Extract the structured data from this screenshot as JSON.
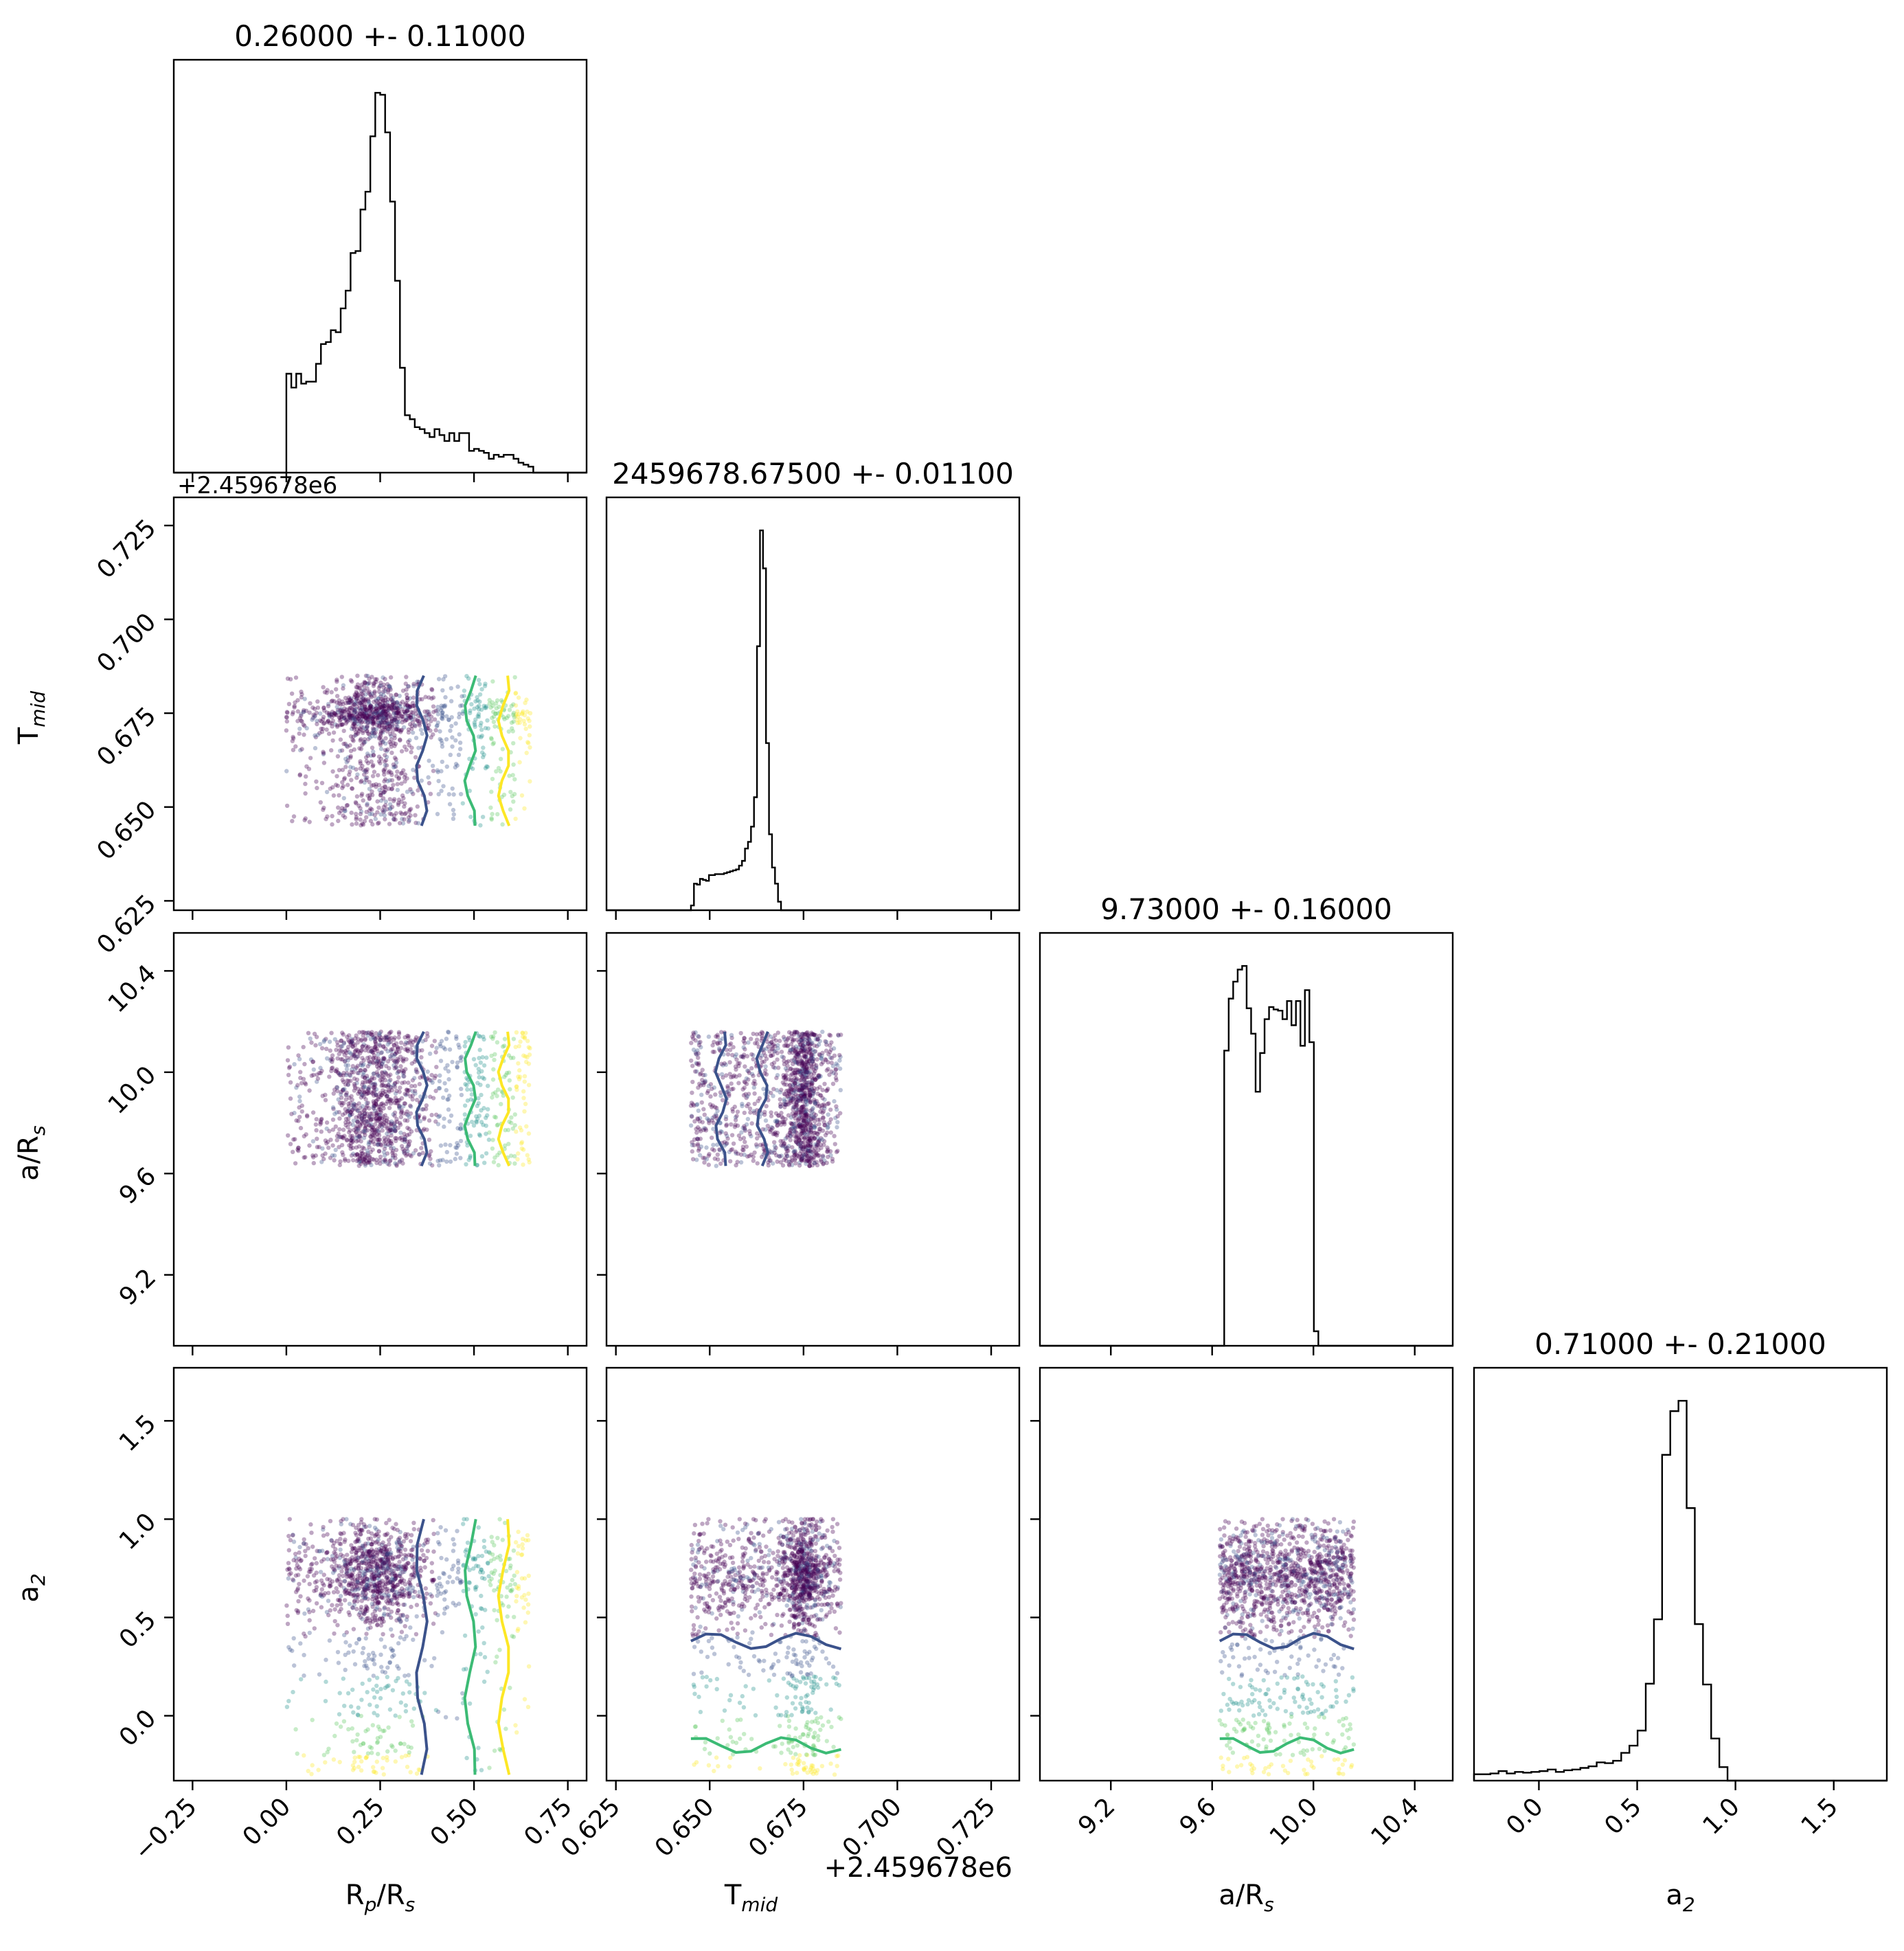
{
  "colors": {
    "frame": "#000000",
    "hist": "#000000",
    "scatter_scale": [
      "#440154",
      "#3b528b",
      "#21918c",
      "#5ec962",
      "#fde725"
    ],
    "contour_levels": [
      "#3b528b",
      "#3cbb75",
      "#fde725"
    ]
  },
  "chart_data": {
    "type": "corner",
    "params": [
      {
        "key": "rp",
        "label": "R",
        "sub": "p",
        "label_rest": "/R",
        "sub2": "s",
        "range": [
          -0.3,
          0.8
        ],
        "ticks": [
          "−0.25",
          "0.00",
          "0.25",
          "0.50",
          "0.75"
        ],
        "tick_values": [
          -0.25,
          0.0,
          0.25,
          0.5,
          0.75
        ],
        "sample_range": [
          0.0,
          0.65
        ]
      },
      {
        "key": "tmid",
        "label": "T",
        "sub": "mid",
        "label_rest": "",
        "sub2": "",
        "range": [
          0.6225,
          0.7325
        ],
        "ticks": [
          "0.625",
          "0.650",
          "0.675",
          "0.700",
          "0.725"
        ],
        "tick_values": [
          0.625,
          0.65,
          0.675,
          0.7,
          0.725
        ],
        "offset": "+2.459678e6",
        "sample_range": [
          0.645,
          0.685
        ]
      },
      {
        "key": "ars",
        "label": "a/R",
        "sub": "s",
        "label_rest": "",
        "sub2": "",
        "range": [
          8.92,
          10.55
        ],
        "ticks": [
          "9.2",
          "9.6",
          "10.0",
          "10.4"
        ],
        "tick_values": [
          9.2,
          9.6,
          10.0,
          10.4
        ],
        "sample_range": [
          9.63,
          10.16
        ]
      },
      {
        "key": "a2",
        "label": "a",
        "sub": "2",
        "label_rest": "",
        "sub2": "",
        "range": [
          -0.33,
          1.77
        ],
        "ticks": [
          "0.0",
          "0.5",
          "1.0",
          "1.5"
        ],
        "tick_values": [
          0.0,
          0.5,
          1.0,
          1.5
        ],
        "sample_range": [
          -0.3,
          1.0
        ]
      }
    ],
    "titles": [
      "0.26000 +- 0.11000",
      "2459678.67500 +- 0.01100",
      "9.73000 +- 0.16000",
      "0.71000 +- 0.21000"
    ],
    "histograms": [
      {
        "param": "rp",
        "bin_edges_start": 0.0,
        "bin_width": 0.01316,
        "counts": [
          50,
          43,
          50,
          45,
          46,
          46,
          55,
          65,
          66,
          72,
          71,
          83,
          92,
          111,
          112,
          133,
          142,
          170,
          192,
          191,
          172,
          137,
          97,
          53,
          29,
          27,
          23,
          22,
          20,
          18,
          22,
          19,
          16,
          20,
          16,
          20,
          20,
          11,
          12,
          11,
          10,
          7,
          9,
          8,
          9,
          9,
          7,
          5,
          4,
          3
        ]
      },
      {
        "param": "tmid",
        "bin_edges_start": 0.645,
        "bin_width": 0.0008,
        "counts": [
          5,
          28,
          27,
          33,
          32,
          31,
          37,
          37,
          38,
          38,
          38,
          39,
          40,
          41,
          42,
          43,
          47,
          52,
          65,
          72,
          88,
          119,
          278,
          400,
          360,
          176,
          80,
          45,
          28,
          9
        ]
      },
      {
        "param": "ars",
        "bin_edges_start": 9.63,
        "bin_width": 0.0177,
        "counts": [
          0,
          244,
          287,
          301,
          311,
          314,
          279,
          258,
          210,
          242,
          270,
          280,
          278,
          277,
          270,
          285,
          265,
          285,
          248,
          294,
          251,
          12
        ]
      },
      {
        "param": "a2",
        "bin_edges_start": -0.33,
        "bin_width": 0.0416,
        "counts": [
          8,
          8,
          9,
          12,
          9,
          11,
          10,
          11,
          12,
          14,
          11,
          13,
          14,
          16,
          18,
          23,
          22,
          25,
          35,
          44,
          63,
          122,
          203,
          410,
          465,
          478,
          343,
          197,
          121,
          53,
          17,
          0,
          0,
          0,
          0,
          0,
          0,
          0,
          0,
          0,
          0,
          0,
          0,
          0,
          0,
          0,
          0,
          0,
          0,
          0
        ]
      }
    ],
    "panel_ranges_note": "",
    "n_samples_per_panel": 1400
  }
}
